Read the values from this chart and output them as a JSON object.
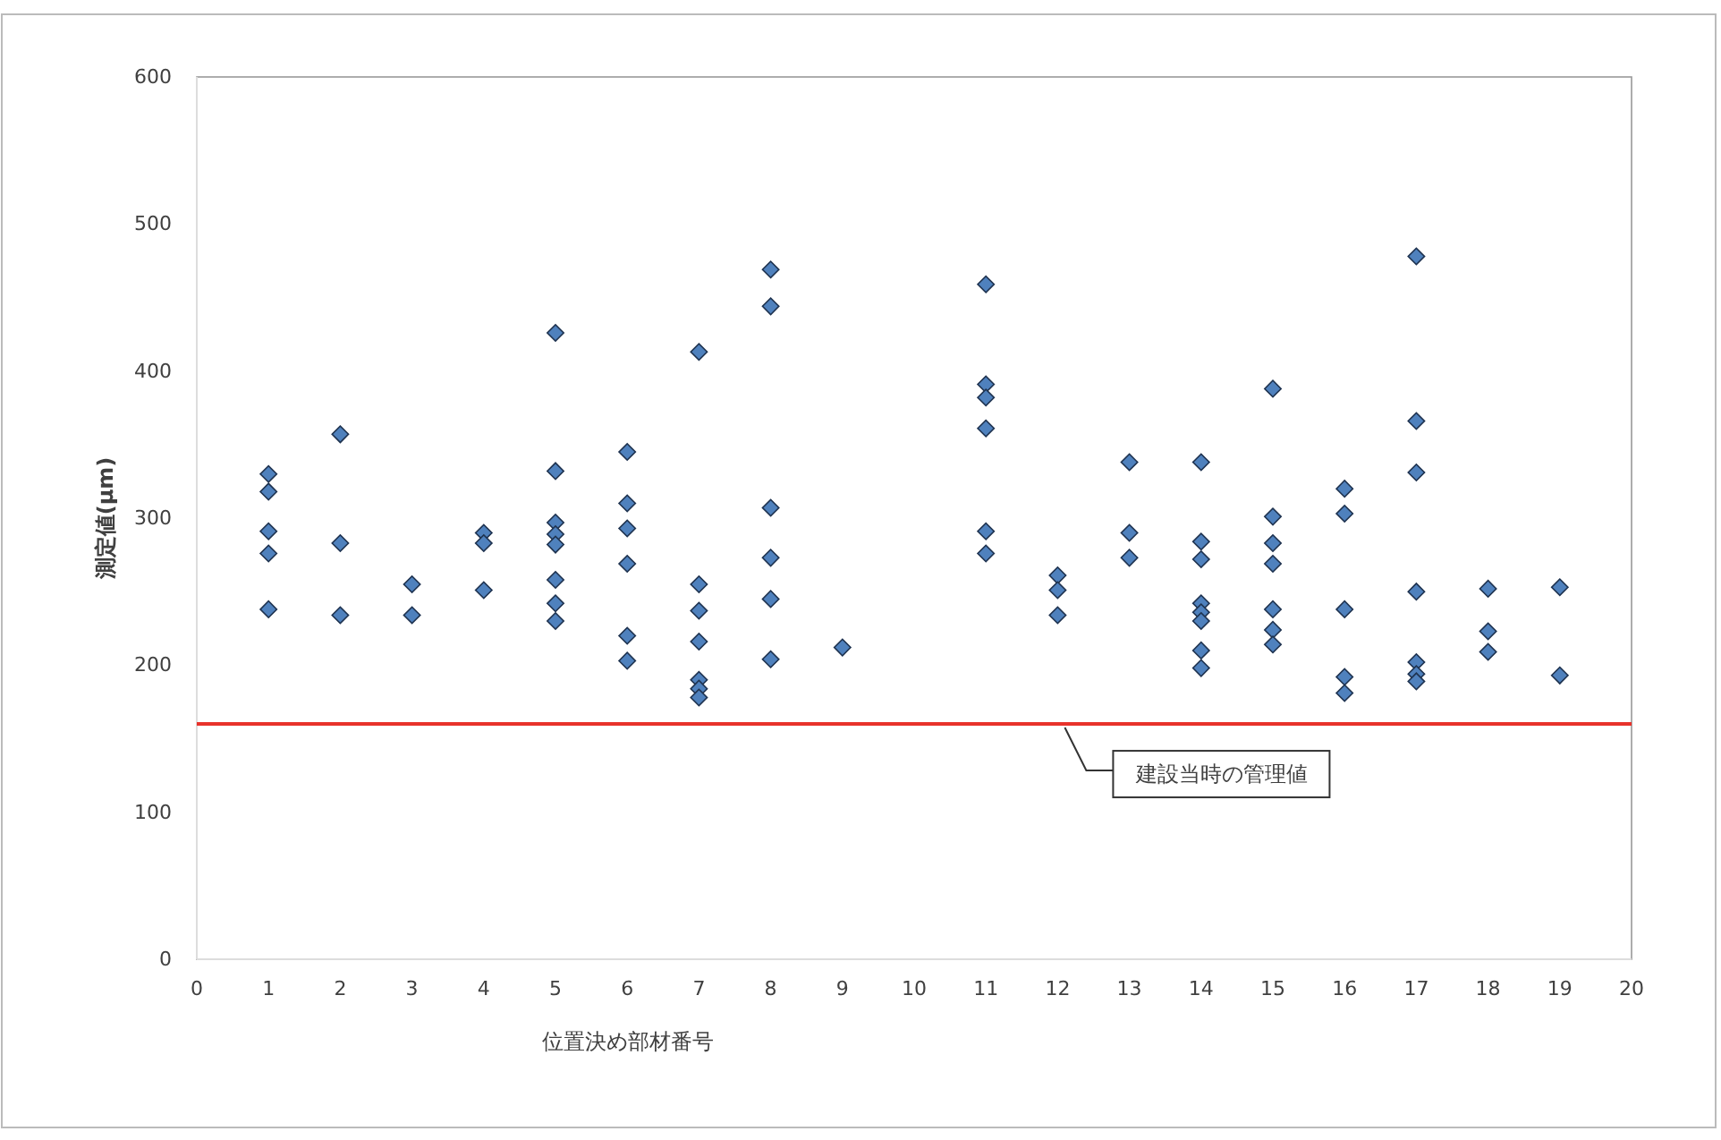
{
  "chart_data": {
    "type": "scatter",
    "xlabel": "位置決め部材番号",
    "ylabel": "測定値(μm)",
    "xlim": [
      0,
      20
    ],
    "xticks": [
      0,
      1,
      2,
      3,
      4,
      5,
      6,
      7,
      8,
      9,
      10,
      11,
      12,
      13,
      14,
      15,
      16,
      17,
      18,
      19,
      20
    ],
    "ylim": [
      0,
      600
    ],
    "yticks": [
      0,
      100,
      200,
      300,
      400,
      500,
      600
    ],
    "grid": false,
    "marker": "diamond",
    "series": [
      {
        "color": "#4f81bd",
        "x": [
          1,
          1,
          1,
          1,
          1,
          2,
          2,
          2,
          3,
          3,
          4,
          4,
          4,
          5,
          5,
          5,
          5,
          5,
          5,
          5,
          5,
          6,
          6,
          6,
          6,
          6,
          6,
          7,
          7,
          7,
          7,
          7,
          7,
          7,
          8,
          8,
          8,
          8,
          8,
          8,
          9,
          11,
          11,
          11,
          11,
          11,
          11,
          12,
          12,
          12,
          13,
          13,
          13,
          14,
          14,
          14,
          14,
          14,
          14,
          14,
          14,
          15,
          15,
          15,
          15,
          15,
          15,
          15,
          16,
          16,
          16,
          16,
          16,
          17,
          17,
          17,
          17,
          17,
          17,
          17,
          18,
          18,
          18,
          19,
          19
        ],
        "values": [
          330,
          318,
          291,
          276,
          238,
          357,
          283,
          234,
          255,
          234,
          290,
          283,
          251,
          426,
          332,
          297,
          289,
          282,
          258,
          242,
          230,
          345,
          310,
          293,
          269,
          220,
          203,
          413,
          255,
          237,
          216,
          190,
          184,
          178,
          469,
          444,
          307,
          273,
          245,
          204,
          212,
          459,
          391,
          382,
          361,
          291,
          276,
          261,
          251,
          234,
          338,
          290,
          273,
          338,
          284,
          272,
          242,
          236,
          230,
          210,
          198,
          388,
          301,
          283,
          269,
          238,
          224,
          214,
          320,
          303,
          238,
          192,
          181,
          478,
          366,
          331,
          250,
          202,
          194,
          189,
          252,
          223,
          209,
          253,
          193
        ]
      }
    ],
    "ref_lines": [
      {
        "axis": "y",
        "value": 160,
        "label": "建設当時の管理値",
        "color": "#e8322b"
      }
    ]
  }
}
